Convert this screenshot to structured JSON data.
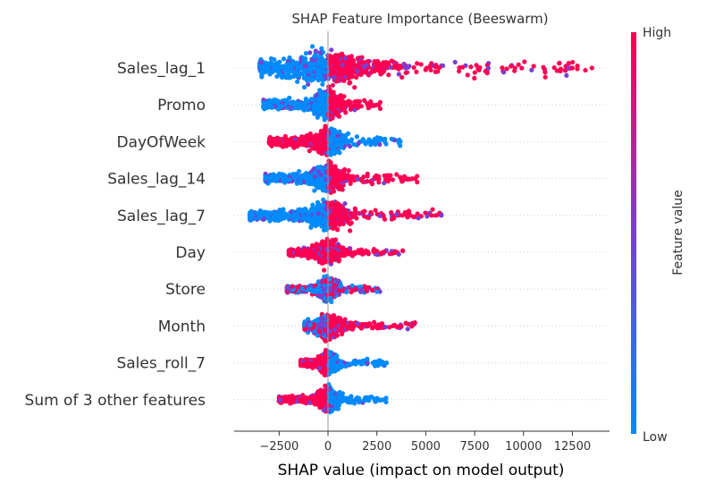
{
  "chart_data": {
    "type": "scatter",
    "subtype": "beeswarm",
    "title": "SHAP Feature Importance (Beeswarm)",
    "xlabel": "SHAP value (impact on model output)",
    "xlim": [
      -4800,
      14400
    ],
    "x_ticks": [
      -2500,
      0,
      2500,
      5000,
      7500,
      10000,
      12500
    ],
    "x_tick_labels": [
      "−2500",
      "0",
      "2500",
      "5000",
      "7500",
      "10000",
      "12500"
    ],
    "colorbar": {
      "label": "Feature value",
      "high_label": "High",
      "low_label": "Low",
      "high_color": "#ff0052",
      "low_color": "#008bfb",
      "mid_color": "#7a3fd0"
    },
    "features": [
      {
        "name": "Sales_lag_1",
        "min": -3500,
        "max": 13500,
        "neg_color": "blue",
        "pos_color": "red",
        "outliers": [
          12300,
          12500,
          13500
        ],
        "spread": 3.8
      },
      {
        "name": "Promo",
        "min": -3300,
        "max": 2700,
        "neg_color": "blue",
        "pos_color": "red",
        "outliers": [],
        "spread": 2.6
      },
      {
        "name": "DayOfWeek",
        "min": -3000,
        "max": 3700,
        "neg_color": "red",
        "pos_color": "blue",
        "outliers": [
          -3000,
          3700
        ],
        "spread": 2.2
      },
      {
        "name": "Sales_lag_14",
        "min": -3200,
        "max": 4600,
        "neg_color": "blue",
        "pos_color": "red",
        "outliers": [
          -3200,
          -2800
        ],
        "spread": 2.4
      },
      {
        "name": "Sales_lag_7",
        "min": -4000,
        "max": 5800,
        "neg_color": "blue",
        "pos_color": "red",
        "outliers": [
          -4000,
          -3500,
          3800,
          4200,
          5300,
          5500,
          5800
        ],
        "spread": 2.4
      },
      {
        "name": "Day",
        "min": -2000,
        "max": 3900,
        "neg_color": "red",
        "pos_color": "red",
        "outliers": [],
        "spread": 1.6
      },
      {
        "name": "Store",
        "min": -2100,
        "max": 2700,
        "neg_color": "mixed",
        "pos_color": "mixed",
        "outliers": [],
        "spread": 1.5
      },
      {
        "name": "Month",
        "min": -1200,
        "max": 4500,
        "neg_color": "mixed",
        "pos_color": "red",
        "outliers": [],
        "spread": 1.8
      },
      {
        "name": "Sales_roll_7",
        "min": -1400,
        "max": 3000,
        "neg_color": "red",
        "pos_color": "blue",
        "outliers": [
          2300,
          2700,
          3000
        ],
        "spread": 1.5
      },
      {
        "name": "Sum of 3 other features",
        "min": -2500,
        "max": 3000,
        "neg_color": "red",
        "pos_color": "blue",
        "outliers": [],
        "spread": 1.6
      }
    ]
  }
}
